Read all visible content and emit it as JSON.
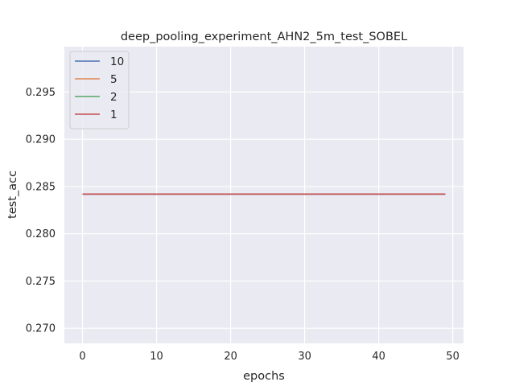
{
  "chart_data": {
    "type": "line",
    "title": "deep_pooling_experiment_AHN2_5m_test_SOBEL",
    "xlabel": "epochs",
    "ylabel": "test_acc",
    "xlim": [
      -2.45,
      51.45
    ],
    "ylim": [
      0.2684,
      0.2998
    ],
    "xticks": [
      0,
      10,
      20,
      30,
      40,
      50
    ],
    "yticks": [
      0.27,
      0.275,
      0.28,
      0.285,
      0.29,
      0.295
    ],
    "ytick_labels": [
      "0.270",
      "0.275",
      "0.280",
      "0.285",
      "0.290",
      "0.295"
    ],
    "grid": true,
    "legend_position": "top-left",
    "series": [
      {
        "name": "10",
        "color": "#4c72b0",
        "x": [
          0,
          49
        ],
        "y": [
          0.2842,
          0.2842
        ]
      },
      {
        "name": "5",
        "color": "#dd8452",
        "x": [
          0,
          49
        ],
        "y": [
          0.2842,
          0.2842
        ]
      },
      {
        "name": "2",
        "color": "#55a868",
        "x": [
          0,
          49
        ],
        "y": [
          0.2842,
          0.2842
        ]
      },
      {
        "name": "1",
        "color": "#c44e52",
        "x": [
          0,
          49
        ],
        "y": [
          0.2842,
          0.2842
        ]
      }
    ]
  }
}
